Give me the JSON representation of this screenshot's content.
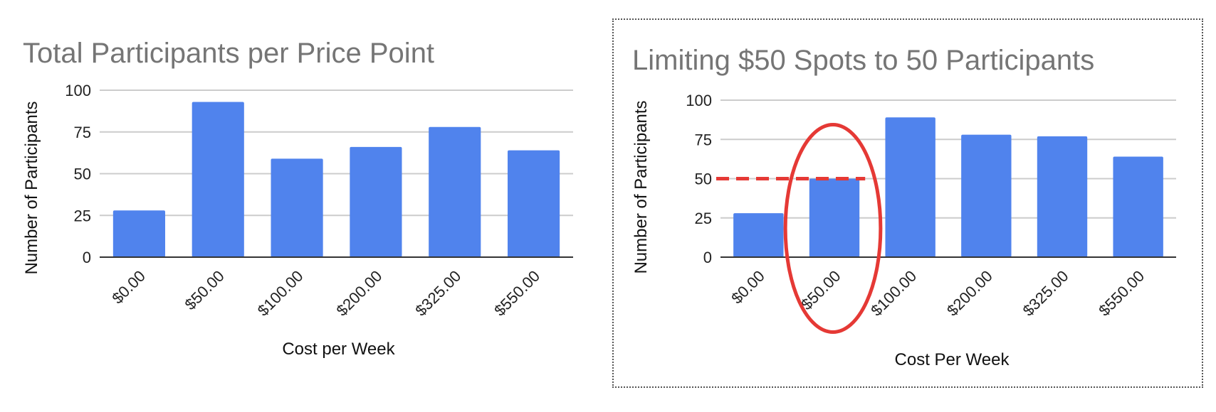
{
  "slide_title": "",
  "chart_data": [
    {
      "type": "bar",
      "title": "Total Participants per Price Point",
      "xlabel": "Cost per Week",
      "ylabel": "Number of Participants",
      "categories": [
        "$0.00",
        "$50.00",
        "$100.00",
        "$200.00",
        "$325.00",
        "$550.00"
      ],
      "values": [
        28,
        93,
        59,
        66,
        78,
        64
      ],
      "ylim": [
        0,
        100
      ],
      "yticks": [
        "0",
        "25",
        "50",
        "75",
        "100"
      ],
      "grid": true,
      "bar_color": "#5083ED"
    },
    {
      "type": "bar",
      "title": "Limiting $50 Spots to 50 Participants",
      "xlabel": "Cost Per Week",
      "ylabel": "Number of Participants",
      "categories": [
        "$0.00",
        "$50.00",
        "$100.00",
        "$200.00",
        "$325.00",
        "$550.00"
      ],
      "values": [
        28,
        50,
        89,
        78,
        77,
        64
      ],
      "ylim": [
        0,
        100
      ],
      "yticks": [
        "0",
        "25",
        "50",
        "75",
        "100"
      ],
      "grid": true,
      "bar_color": "#5083ED",
      "annotations": {
        "limit_line_value": 50,
        "limit_line_color": "#E53935",
        "highlight_category": "$50.00",
        "highlight_color": "#E53935"
      }
    }
  ]
}
